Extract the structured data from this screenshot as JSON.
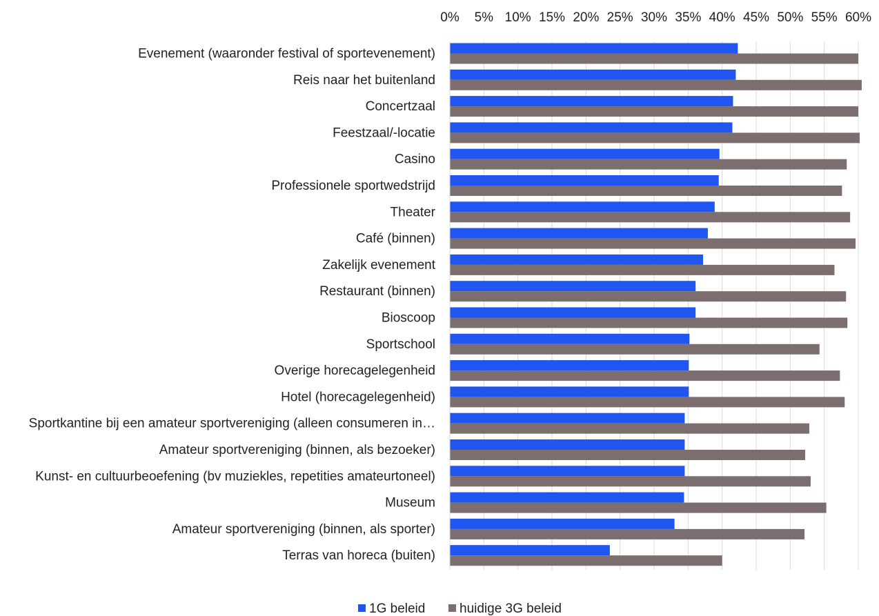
{
  "chart_data": {
    "type": "bar",
    "orientation": "horizontal",
    "categories": [
      "Evenement (waaronder festival of sportevenement)",
      "Reis naar het buitenland",
      "Concertzaal",
      "Feestzaal/-locatie",
      "Casino",
      "Professionele sportwedstrijd",
      "Theater",
      "Café (binnen)",
      "Zakelijk evenement",
      "Restaurant (binnen)",
      "Bioscoop",
      "Sportschool",
      "Overige horecagelegenheid",
      "Hotel (horecagelegenheid)",
      "Sportkantine bij een amateur sportvereniging (alleen consumeren in…",
      "Amateur sportvereniging (binnen, als bezoeker)",
      "Kunst- en cultuurbeoefening (bv muziekles, repetities amateurtoneel)",
      "Museum",
      "Amateur sportvereniging (binnen, als sporter)",
      "Terras van horeca (buiten)"
    ],
    "series": [
      {
        "name": "1G beleid",
        "color": "#2155f0",
        "values": [
          42.3,
          42.0,
          41.6,
          41.5,
          39.6,
          39.5,
          38.9,
          37.9,
          37.2,
          36.1,
          36.1,
          35.2,
          35.1,
          35.1,
          34.5,
          34.5,
          34.5,
          34.4,
          33.0,
          23.5
        ]
      },
      {
        "name": "huidige 3G beleid",
        "color": "#7c6e6e",
        "values": [
          60.0,
          60.5,
          60.0,
          60.2,
          58.3,
          57.6,
          58.8,
          59.6,
          56.5,
          58.2,
          58.4,
          54.3,
          57.3,
          58.0,
          52.8,
          52.2,
          53.0,
          55.3,
          52.1,
          40.0
        ]
      }
    ],
    "xlim": [
      0,
      60
    ],
    "xticks": [
      "0%",
      "5%",
      "10%",
      "15%",
      "20%",
      "25%",
      "30%",
      "35%",
      "40%",
      "45%",
      "50%",
      "55%",
      "60%"
    ],
    "xaxis_position": "top",
    "grid": true,
    "legend": "bottom"
  }
}
